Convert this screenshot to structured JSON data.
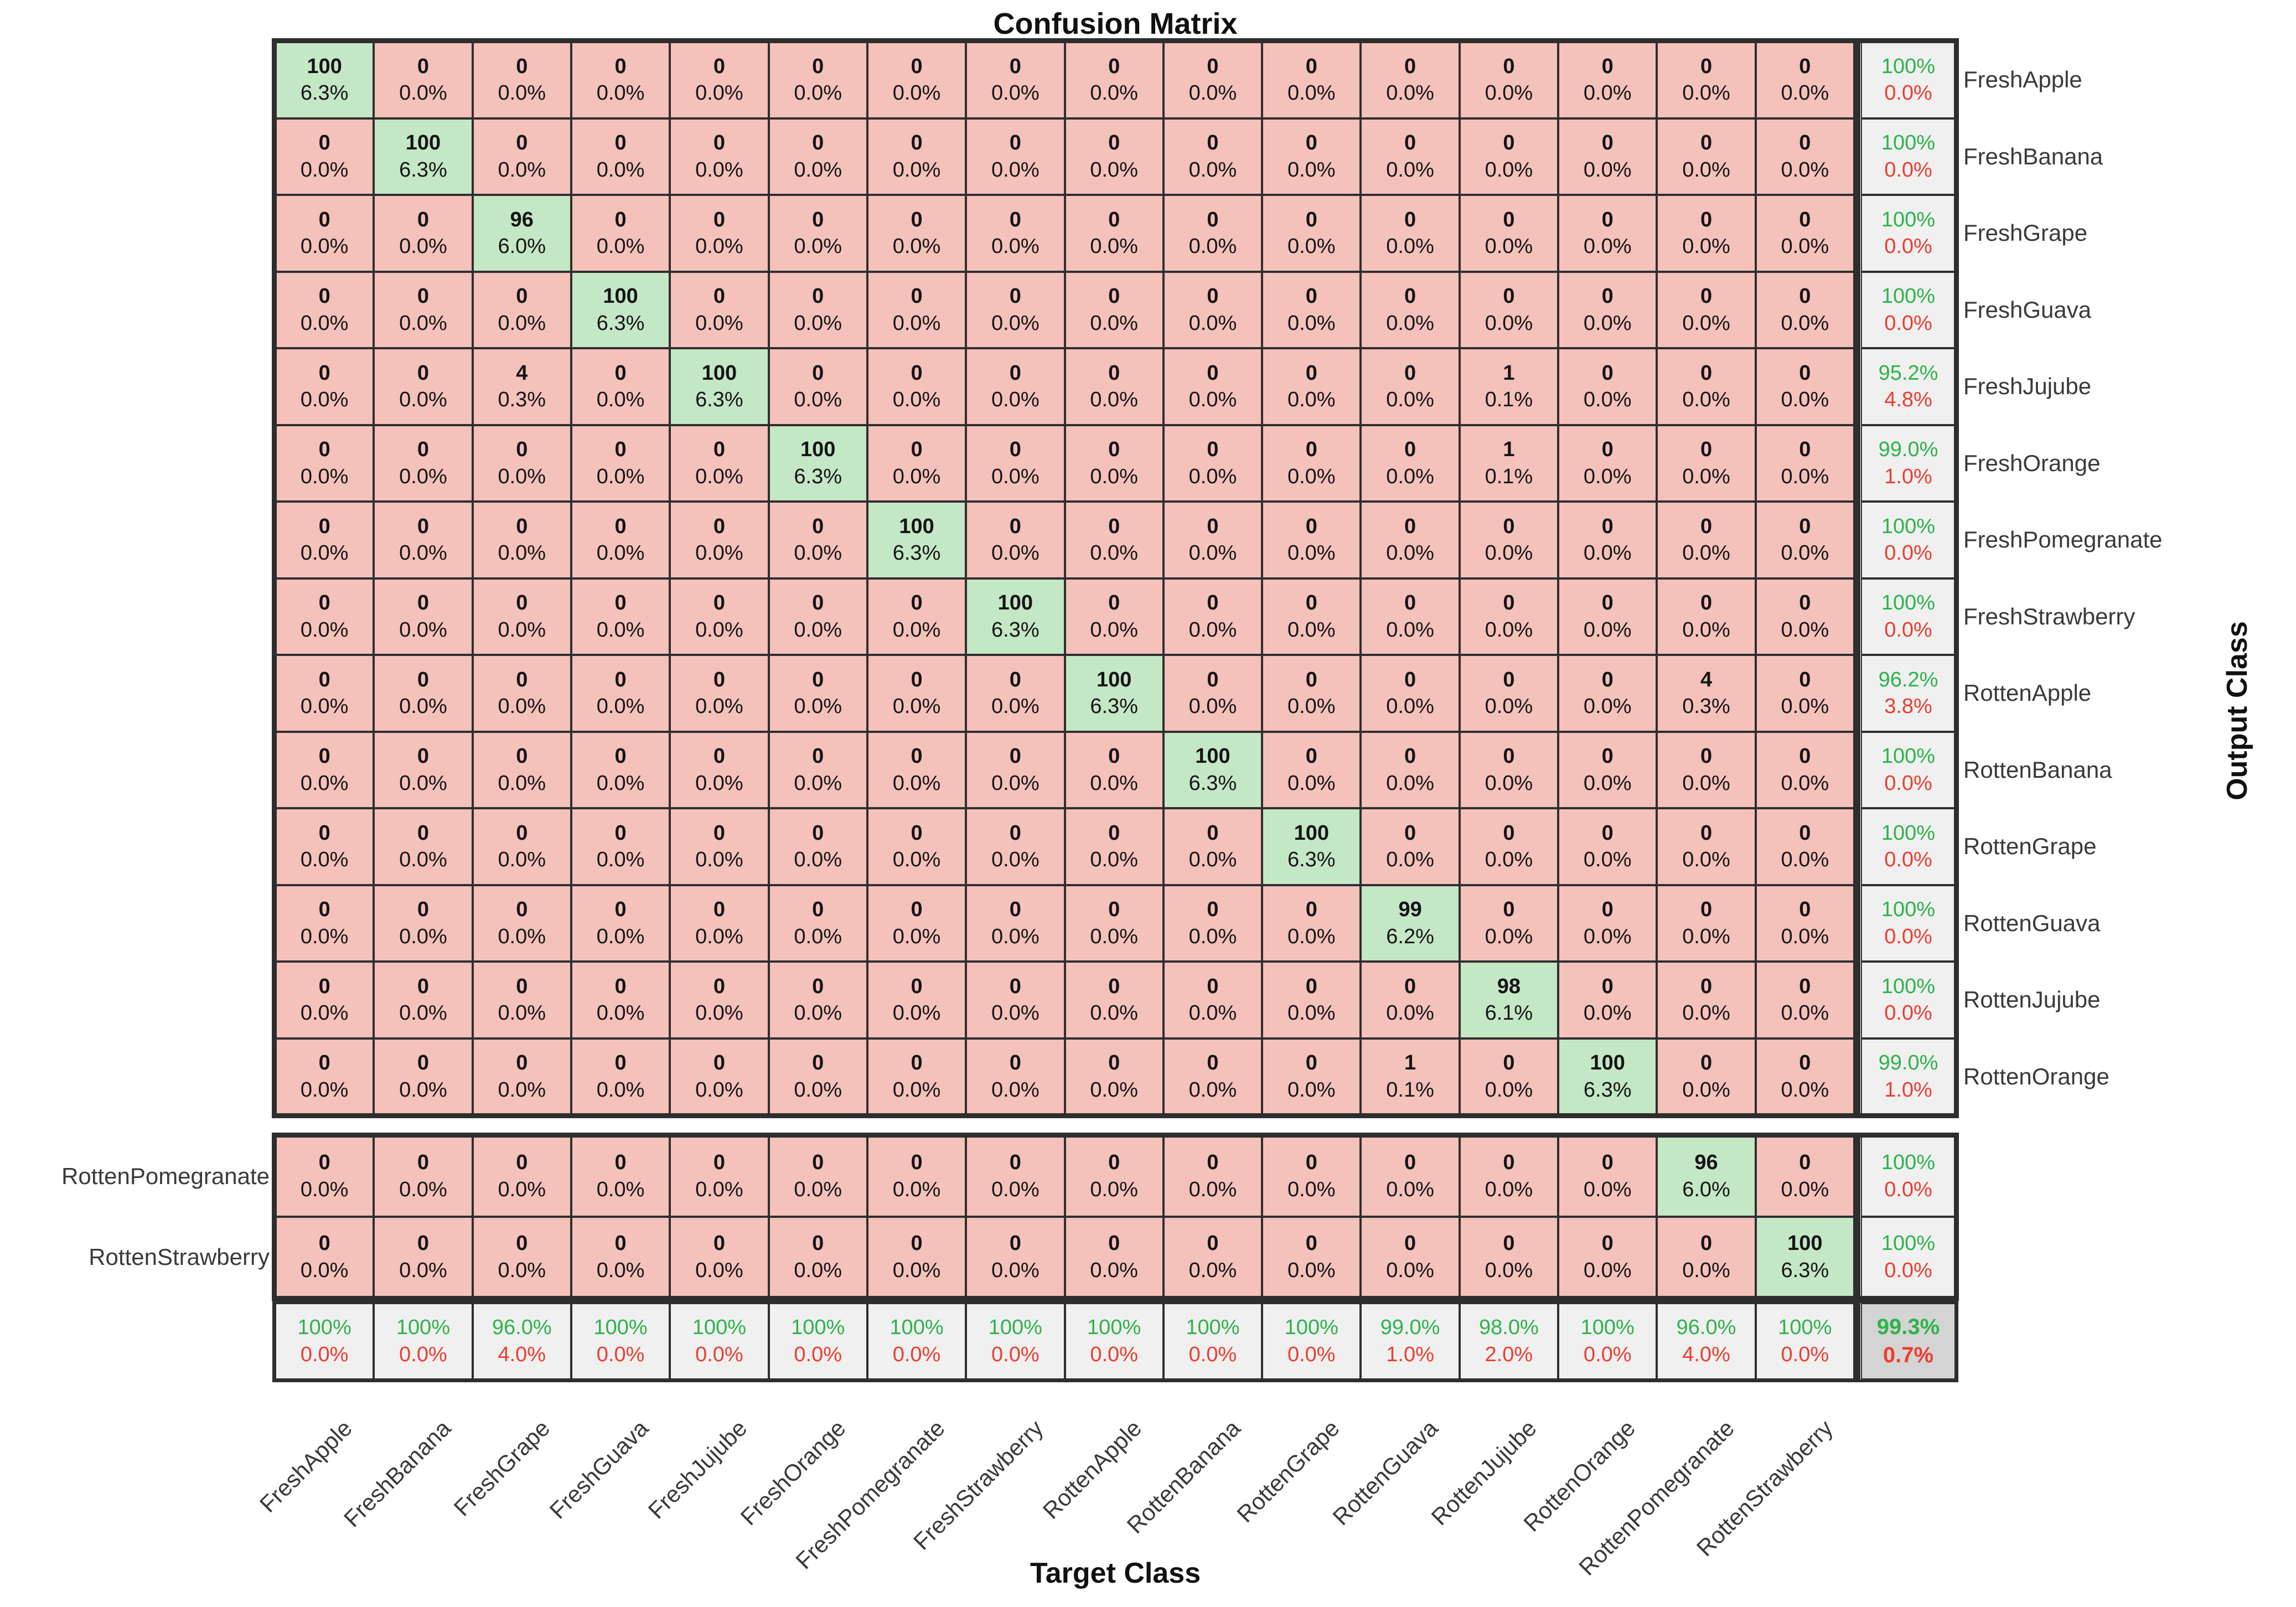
{
  "title": "Confusion Matrix",
  "colors": {
    "diagonal_cell": "#c4e7c5",
    "offdiagonal_cell": "#f5c1bb",
    "summary_cell": "#f0f0f0",
    "corner_cell": "#d4d4d4",
    "grid_line": "#2f2f2f",
    "thick_border": "#2e2e2e",
    "green_text": "#2db34a",
    "red_text": "#ee3c30"
  },
  "chart_data": {
    "type": "heatmap",
    "subtype": "confusion-matrix",
    "title": "Confusion Matrix",
    "xlabel": "Target Class",
    "ylabel": "Output Class",
    "legend_position": "none",
    "grid": true,
    "classes": [
      "FreshApple",
      "FreshBanana",
      "FreshGrape",
      "FreshGuava",
      "FreshJujube",
      "FreshOrange",
      "FreshPomegranate",
      "FreshStrawberry",
      "RottenApple",
      "RottenBanana",
      "RottenGrape",
      "RottenGuava",
      "RottenJujube",
      "RottenOrange",
      "RottenPomegranate",
      "RottenStrawberry"
    ],
    "matrix": [
      [
        100,
        0,
        0,
        0,
        0,
        0,
        0,
        0,
        0,
        0,
        0,
        0,
        0,
        0,
        0,
        0
      ],
      [
        0,
        100,
        0,
        0,
        0,
        0,
        0,
        0,
        0,
        0,
        0,
        0,
        0,
        0,
        0,
        0
      ],
      [
        0,
        0,
        96,
        0,
        0,
        0,
        0,
        0,
        0,
        0,
        0,
        0,
        0,
        0,
        0,
        0
      ],
      [
        0,
        0,
        0,
        100,
        0,
        0,
        0,
        0,
        0,
        0,
        0,
        0,
        0,
        0,
        0,
        0
      ],
      [
        0,
        0,
        4,
        0,
        100,
        0,
        0,
        0,
        0,
        0,
        0,
        0,
        1,
        0,
        0,
        0
      ],
      [
        0,
        0,
        0,
        0,
        0,
        100,
        0,
        0,
        0,
        0,
        0,
        0,
        1,
        0,
        0,
        0
      ],
      [
        0,
        0,
        0,
        0,
        0,
        0,
        100,
        0,
        0,
        0,
        0,
        0,
        0,
        0,
        0,
        0
      ],
      [
        0,
        0,
        0,
        0,
        0,
        0,
        0,
        100,
        0,
        0,
        0,
        0,
        0,
        0,
        0,
        0
      ],
      [
        0,
        0,
        0,
        0,
        0,
        0,
        0,
        0,
        100,
        0,
        0,
        0,
        0,
        0,
        4,
        0
      ],
      [
        0,
        0,
        0,
        0,
        0,
        0,
        0,
        0,
        0,
        100,
        0,
        0,
        0,
        0,
        0,
        0
      ],
      [
        0,
        0,
        0,
        0,
        0,
        0,
        0,
        0,
        0,
        0,
        100,
        0,
        0,
        0,
        0,
        0
      ],
      [
        0,
        0,
        0,
        0,
        0,
        0,
        0,
        0,
        0,
        0,
        0,
        99,
        0,
        0,
        0,
        0
      ],
      [
        0,
        0,
        0,
        0,
        0,
        0,
        0,
        0,
        0,
        0,
        0,
        0,
        98,
        0,
        0,
        0
      ],
      [
        0,
        0,
        0,
        0,
        0,
        0,
        0,
        0,
        0,
        0,
        0,
        1,
        0,
        100,
        0,
        0
      ],
      [
        0,
        0,
        0,
        0,
        0,
        0,
        0,
        0,
        0,
        0,
        0,
        0,
        0,
        0,
        96,
        0
      ],
      [
        0,
        0,
        0,
        0,
        0,
        0,
        0,
        0,
        0,
        0,
        0,
        0,
        0,
        0,
        0,
        100
      ]
    ],
    "cell_pct": [
      [
        "6.3%",
        "0.0%",
        "0.0%",
        "0.0%",
        "0.0%",
        "0.0%",
        "0.0%",
        "0.0%",
        "0.0%",
        "0.0%",
        "0.0%",
        "0.0%",
        "0.0%",
        "0.0%",
        "0.0%",
        "0.0%"
      ],
      [
        "0.0%",
        "6.3%",
        "0.0%",
        "0.0%",
        "0.0%",
        "0.0%",
        "0.0%",
        "0.0%",
        "0.0%",
        "0.0%",
        "0.0%",
        "0.0%",
        "0.0%",
        "0.0%",
        "0.0%",
        "0.0%"
      ],
      [
        "0.0%",
        "0.0%",
        "6.0%",
        "0.0%",
        "0.0%",
        "0.0%",
        "0.0%",
        "0.0%",
        "0.0%",
        "0.0%",
        "0.0%",
        "0.0%",
        "0.0%",
        "0.0%",
        "0.0%",
        "0.0%"
      ],
      [
        "0.0%",
        "0.0%",
        "0.0%",
        "6.3%",
        "0.0%",
        "0.0%",
        "0.0%",
        "0.0%",
        "0.0%",
        "0.0%",
        "0.0%",
        "0.0%",
        "0.0%",
        "0.0%",
        "0.0%",
        "0.0%"
      ],
      [
        "0.0%",
        "0.0%",
        "0.3%",
        "0.0%",
        "6.3%",
        "0.0%",
        "0.0%",
        "0.0%",
        "0.0%",
        "0.0%",
        "0.0%",
        "0.0%",
        "0.1%",
        "0.0%",
        "0.0%",
        "0.0%"
      ],
      [
        "0.0%",
        "0.0%",
        "0.0%",
        "0.0%",
        "0.0%",
        "6.3%",
        "0.0%",
        "0.0%",
        "0.0%",
        "0.0%",
        "0.0%",
        "0.0%",
        "0.1%",
        "0.0%",
        "0.0%",
        "0.0%"
      ],
      [
        "0.0%",
        "0.0%",
        "0.0%",
        "0.0%",
        "0.0%",
        "0.0%",
        "6.3%",
        "0.0%",
        "0.0%",
        "0.0%",
        "0.0%",
        "0.0%",
        "0.0%",
        "0.0%",
        "0.0%",
        "0.0%"
      ],
      [
        "0.0%",
        "0.0%",
        "0.0%",
        "0.0%",
        "0.0%",
        "0.0%",
        "0.0%",
        "6.3%",
        "0.0%",
        "0.0%",
        "0.0%",
        "0.0%",
        "0.0%",
        "0.0%",
        "0.0%",
        "0.0%"
      ],
      [
        "0.0%",
        "0.0%",
        "0.0%",
        "0.0%",
        "0.0%",
        "0.0%",
        "0.0%",
        "0.0%",
        "6.3%",
        "0.0%",
        "0.0%",
        "0.0%",
        "0.0%",
        "0.0%",
        "0.3%",
        "0.0%"
      ],
      [
        "0.0%",
        "0.0%",
        "0.0%",
        "0.0%",
        "0.0%",
        "0.0%",
        "0.0%",
        "0.0%",
        "0.0%",
        "6.3%",
        "0.0%",
        "0.0%",
        "0.0%",
        "0.0%",
        "0.0%",
        "0.0%"
      ],
      [
        "0.0%",
        "0.0%",
        "0.0%",
        "0.0%",
        "0.0%",
        "0.0%",
        "0.0%",
        "0.0%",
        "0.0%",
        "0.0%",
        "6.3%",
        "0.0%",
        "0.0%",
        "0.0%",
        "0.0%",
        "0.0%"
      ],
      [
        "0.0%",
        "0.0%",
        "0.0%",
        "0.0%",
        "0.0%",
        "0.0%",
        "0.0%",
        "0.0%",
        "0.0%",
        "0.0%",
        "0.0%",
        "6.2%",
        "0.0%",
        "0.0%",
        "0.0%",
        "0.0%"
      ],
      [
        "0.0%",
        "0.0%",
        "0.0%",
        "0.0%",
        "0.0%",
        "0.0%",
        "0.0%",
        "0.0%",
        "0.0%",
        "0.0%",
        "0.0%",
        "0.0%",
        "6.1%",
        "0.0%",
        "0.0%",
        "0.0%"
      ],
      [
        "0.0%",
        "0.0%",
        "0.0%",
        "0.0%",
        "0.0%",
        "0.0%",
        "0.0%",
        "0.0%",
        "0.0%",
        "0.0%",
        "0.0%",
        "0.1%",
        "0.0%",
        "6.3%",
        "0.0%",
        "0.0%"
      ],
      [
        "0.0%",
        "0.0%",
        "0.0%",
        "0.0%",
        "0.0%",
        "0.0%",
        "0.0%",
        "0.0%",
        "0.0%",
        "0.0%",
        "0.0%",
        "0.0%",
        "0.0%",
        "0.0%",
        "6.0%",
        "0.0%"
      ],
      [
        "0.0%",
        "0.0%",
        "0.0%",
        "0.0%",
        "0.0%",
        "0.0%",
        "0.0%",
        "0.0%",
        "0.0%",
        "0.0%",
        "0.0%",
        "0.0%",
        "0.0%",
        "0.0%",
        "0.0%",
        "6.3%"
      ]
    ],
    "row_summary": [
      [
        "100%",
        "0.0%"
      ],
      [
        "100%",
        "0.0%"
      ],
      [
        "100%",
        "0.0%"
      ],
      [
        "100%",
        "0.0%"
      ],
      [
        "95.2%",
        "4.8%"
      ],
      [
        "99.0%",
        "1.0%"
      ],
      [
        "100%",
        "0.0%"
      ],
      [
        "100%",
        "0.0%"
      ],
      [
        "96.2%",
        "3.8%"
      ],
      [
        "100%",
        "0.0%"
      ],
      [
        "100%",
        "0.0%"
      ],
      [
        "100%",
        "0.0%"
      ],
      [
        "100%",
        "0.0%"
      ],
      [
        "99.0%",
        "1.0%"
      ],
      [
        "100%",
        "0.0%"
      ],
      [
        "100%",
        "0.0%"
      ]
    ],
    "col_summary": [
      [
        "100%",
        "0.0%"
      ],
      [
        "100%",
        "0.0%"
      ],
      [
        "96.0%",
        "4.0%"
      ],
      [
        "100%",
        "0.0%"
      ],
      [
        "100%",
        "0.0%"
      ],
      [
        "100%",
        "0.0%"
      ],
      [
        "100%",
        "0.0%"
      ],
      [
        "100%",
        "0.0%"
      ],
      [
        "100%",
        "0.0%"
      ],
      [
        "100%",
        "0.0%"
      ],
      [
        "100%",
        "0.0%"
      ],
      [
        "99.0%",
        "1.0%"
      ],
      [
        "98.0%",
        "2.0%"
      ],
      [
        "100%",
        "0.0%"
      ],
      [
        "96.0%",
        "4.0%"
      ],
      [
        "100%",
        "0.0%"
      ]
    ],
    "overall": [
      "99.3%",
      "0.7%"
    ]
  }
}
